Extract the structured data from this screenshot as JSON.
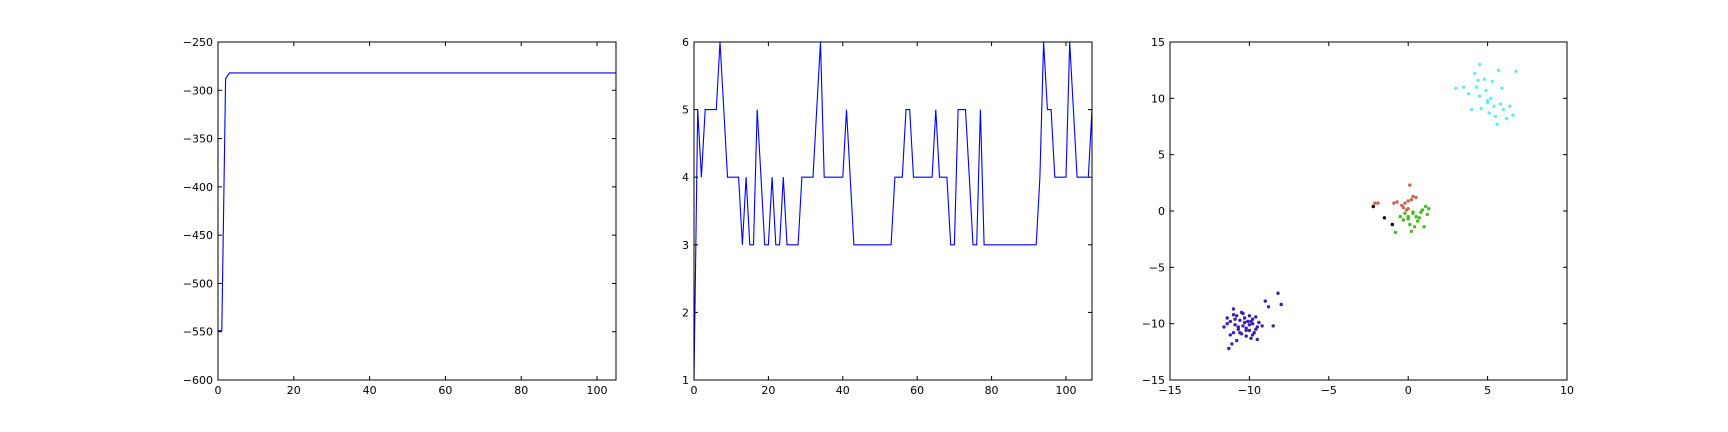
{
  "chart_data": [
    {
      "type": "line",
      "title": "",
      "xlabel": "",
      "ylabel": "",
      "xlim": [
        0,
        105
      ],
      "ylim": [
        -600,
        -250
      ],
      "xticks": [
        0,
        20,
        40,
        60,
        80,
        100
      ],
      "yticks": [
        -600,
        -550,
        -500,
        -450,
        -400,
        -350,
        -300,
        -250
      ],
      "xtick_labels": [
        "0",
        "20",
        "40",
        "60",
        "80",
        "100"
      ],
      "ytick_labels": [
        "−600",
        "−550",
        "−500",
        "−450",
        "−400",
        "−350",
        "−300",
        "−250"
      ],
      "grid": false,
      "series": [
        {
          "color": "#0000ff",
          "x": [
            0,
            1,
            2,
            3,
            105
          ],
          "y": [
            -549,
            -549,
            -288,
            -282,
            -282
          ]
        }
      ]
    },
    {
      "type": "line",
      "title": "",
      "xlabel": "",
      "ylabel": "",
      "xlim": [
        0,
        107
      ],
      "ylim": [
        1,
        6
      ],
      "xticks": [
        0,
        20,
        40,
        60,
        80,
        100
      ],
      "yticks": [
        1,
        2,
        3,
        4,
        5,
        6
      ],
      "xtick_labels": [
        "0",
        "20",
        "40",
        "60",
        "80",
        "100"
      ],
      "ytick_labels": [
        "1",
        "2",
        "3",
        "4",
        "5",
        "6"
      ],
      "grid": false,
      "series": [
        {
          "color": "#0000ff",
          "x": [
            0,
            1,
            2,
            3,
            4,
            5,
            6,
            7,
            8,
            9,
            10,
            11,
            12,
            13,
            14,
            15,
            16,
            17,
            18,
            19,
            20,
            21,
            22,
            23,
            24,
            25,
            26,
            27,
            28,
            29,
            30,
            31,
            32,
            33,
            34,
            35,
            36,
            37,
            38,
            39,
            40,
            41,
            42,
            43,
            44,
            45,
            46,
            47,
            48,
            49,
            50,
            51,
            52,
            53,
            54,
            55,
            56,
            57,
            58,
            59,
            60,
            61,
            62,
            63,
            64,
            65,
            66,
            67,
            68,
            69,
            70,
            71,
            72,
            73,
            74,
            75,
            76,
            77,
            78,
            79,
            80,
            81,
            82,
            83,
            84,
            85,
            86,
            87,
            88,
            89,
            90,
            91,
            92,
            93,
            94,
            95,
            96,
            97,
            98,
            99,
            100,
            101,
            102,
            103,
            104,
            105,
            106,
            107
          ],
          "y": [
            1,
            5,
            4,
            5,
            5,
            5,
            5,
            6,
            5,
            4,
            4,
            4,
            4,
            3,
            4,
            3,
            3,
            5,
            4,
            3,
            3,
            4,
            3,
            3,
            4,
            3,
            3,
            3,
            3,
            4,
            4,
            4,
            4,
            5,
            6,
            4,
            4,
            4,
            4,
            4,
            4,
            5,
            4,
            3,
            3,
            3,
            3,
            3,
            3,
            3,
            3,
            3,
            3,
            3,
            4,
            4,
            4,
            5,
            5,
            4,
            4,
            4,
            4,
            4,
            4,
            5,
            4,
            4,
            4,
            3,
            3,
            5,
            5,
            5,
            4,
            3,
            3,
            5,
            3,
            3,
            3,
            3,
            3,
            3,
            3,
            3,
            3,
            3,
            3,
            3,
            3,
            3,
            3,
            4,
            6,
            5,
            5,
            4,
            4,
            4,
            4,
            6,
            5,
            4,
            4,
            4,
            4,
            5
          ]
        }
      ]
    },
    {
      "type": "scatter",
      "title": "",
      "xlabel": "",
      "ylabel": "",
      "xlim": [
        -15,
        10
      ],
      "ylim": [
        -15,
        15
      ],
      "xticks": [
        -15,
        -10,
        -5,
        0,
        5,
        10
      ],
      "yticks": [
        -15,
        -10,
        -5,
        0,
        5,
        10,
        15
      ],
      "xtick_labels": [
        "−15",
        "−10",
        "−5",
        "0",
        "5",
        "10"
      ],
      "ytick_labels": [
        "−15",
        "−10",
        "−5",
        "0",
        "5",
        "10",
        "15"
      ],
      "grid": false,
      "series": [
        {
          "color": "#3a1fb0",
          "x": [
            -11.6,
            -11.4,
            -11.3,
            -11.2,
            -11.2,
            -11.0,
            -11.0,
            -10.9,
            -10.8,
            -10.8,
            -10.7,
            -10.6,
            -10.5,
            -10.5,
            -10.4,
            -10.3,
            -10.2,
            -10.2,
            -10.1,
            -10.0,
            -10.0,
            -9.9,
            -9.8,
            -9.8,
            -9.7,
            -9.6,
            -9.5,
            -9.5,
            -9.4,
            -9.2,
            -9.0,
            -8.8,
            -8.5,
            -8.2,
            -8.0,
            -11.4,
            -11.1,
            -10.9,
            -10.6,
            -10.4,
            -10.2,
            -9.9,
            -9.6,
            -9.8,
            -10.3,
            -10.0,
            -10.7,
            -11.0
          ],
          "y": [
            -10.3,
            -9.5,
            -12.2,
            -11.0,
            -9.8,
            -10.8,
            -8.7,
            -10.1,
            -9.3,
            -11.5,
            -10.5,
            -9.7,
            -10.9,
            -9.0,
            -10.2,
            -9.5,
            -11.1,
            -10.4,
            -9.8,
            -10.6,
            -9.3,
            -11.3,
            -10.0,
            -9.6,
            -10.8,
            -9.4,
            -10.3,
            -11.4,
            -9.9,
            -10.2,
            -8.0,
            -8.5,
            -10.2,
            -7.3,
            -8.3,
            -10.0,
            -11.8,
            -9.6,
            -10.8,
            -9.1,
            -10.6,
            -9.8,
            -10.5,
            -11.0,
            -9.9,
            -10.1,
            -10.3,
            -9.2
          ]
        },
        {
          "color": "#66ebf0",
          "x": [
            3.0,
            3.5,
            3.8,
            4.0,
            4.2,
            4.3,
            4.5,
            4.5,
            4.6,
            4.8,
            4.9,
            5.0,
            5.1,
            5.2,
            5.3,
            5.4,
            5.5,
            5.6,
            5.7,
            5.8,
            5.9,
            6.0,
            6.2,
            6.4,
            6.8,
            6.6,
            4.4,
            5.0
          ],
          "y": [
            10.9,
            11.0,
            10.4,
            9.0,
            12.2,
            11.0,
            13.0,
            10.2,
            9.1,
            11.7,
            10.7,
            9.6,
            8.7,
            10.0,
            11.5,
            9.3,
            8.4,
            7.7,
            12.5,
            9.5,
            10.9,
            9.0,
            8.2,
            9.3,
            12.4,
            8.5,
            11.6,
            9.8
          ]
        },
        {
          "color": "#cc6655",
          "x": [
            -2.1,
            -1.9,
            -0.9,
            -0.7,
            -0.4,
            -0.3,
            -0.2,
            -0.1,
            0.0,
            0.1,
            0.2,
            0.3,
            0.5,
            0.0
          ],
          "y": [
            0.7,
            0.7,
            0.7,
            0.8,
            0.5,
            0.3,
            0.7,
            0.1,
            0.9,
            2.3,
            1.0,
            1.3,
            1.2,
            0.2
          ]
        },
        {
          "color": "#000000",
          "x": [
            -2.2,
            -1.5,
            -1.0
          ],
          "y": [
            0.4,
            -0.6,
            -1.2
          ]
        },
        {
          "color": "#44bb22",
          "x": [
            -0.8,
            -0.5,
            -0.3,
            -0.2,
            0.0,
            0.1,
            0.2,
            0.3,
            0.4,
            0.5,
            0.6,
            0.7,
            0.8,
            0.9,
            1.0,
            1.1,
            1.2,
            1.3,
            0.0,
            0.3
          ],
          "y": [
            -1.9,
            -0.5,
            -0.8,
            -0.2,
            -0.5,
            -1.2,
            -1.8,
            -0.2,
            -1.4,
            -0.5,
            -0.9,
            -0.6,
            -0.1,
            0.1,
            -1.4,
            0.4,
            -0.3,
            0.2,
            -0.7,
            -0.1
          ]
        }
      ]
    }
  ]
}
